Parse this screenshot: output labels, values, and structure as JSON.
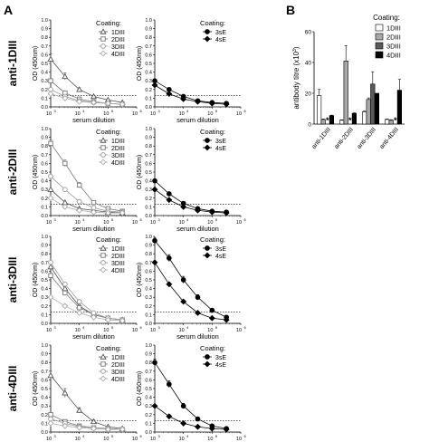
{
  "panels": {
    "a": "A",
    "b": "B"
  },
  "line_charts": {
    "xlabel": "serum dilution",
    "ylabel": "OD (450nm)",
    "ylabel_alt": "OD (450m)",
    "yticks": [
      "0.0",
      "0.1",
      "0.2",
      "0.3",
      "0.4",
      "0.5",
      "0.6",
      "0.7",
      "0.8",
      "0.9",
      "1.0"
    ],
    "xticks": [
      "10",
      "10",
      "10",
      "10"
    ],
    "xtick_exps": [
      "3",
      "4",
      "5",
      "6"
    ],
    "threshold": 0.13,
    "legend_title": "Coating:"
  },
  "chart_data": [
    {
      "type": "line",
      "row": "anti-1DIII",
      "coating": "DIII",
      "xlim_log10": [
        3,
        6
      ],
      "ylim": [
        0,
        1
      ],
      "x": [
        3,
        3.5,
        4,
        4.5,
        5,
        5.5
      ],
      "series": [
        {
          "name": "1DIII",
          "marker": "triangle",
          "values": [
            0.55,
            0.35,
            0.2,
            0.12,
            0.08,
            0.05
          ],
          "err": [
            0.06,
            0.04,
            0.02,
            0.01,
            0.01,
            0.01
          ]
        },
        {
          "name": "2DIII",
          "marker": "square",
          "values": [
            0.3,
            0.16,
            0.09,
            0.06,
            0.04,
            0.03
          ]
        },
        {
          "name": "3DIII",
          "marker": "circle",
          "values": [
            0.2,
            0.12,
            0.07,
            0.05,
            0.04,
            0.03
          ]
        },
        {
          "name": "4DIII",
          "marker": "diamond",
          "values": [
            0.15,
            0.1,
            0.06,
            0.05,
            0.04,
            0.03
          ]
        }
      ]
    },
    {
      "type": "line",
      "row": "anti-1DIII",
      "coating": "E",
      "xlim_log10": [
        3,
        6
      ],
      "ylim": [
        0,
        1
      ],
      "x": [
        3,
        3.5,
        4,
        4.5,
        5,
        5.5
      ],
      "series": [
        {
          "name": "3sE",
          "marker": "filled-circle",
          "values": [
            0.3,
            0.2,
            0.12,
            0.07,
            0.05,
            0.04
          ]
        },
        {
          "name": "4sE",
          "marker": "filled-diamond",
          "values": [
            0.25,
            0.15,
            0.09,
            0.06,
            0.04,
            0.03
          ]
        }
      ]
    },
    {
      "type": "line",
      "row": "anti-2DIII",
      "coating": "DIII",
      "xlim_log10": [
        3,
        6
      ],
      "ylim": [
        0,
        1
      ],
      "x": [
        3,
        3.5,
        4,
        4.5,
        5,
        5.5
      ],
      "series": [
        {
          "name": "1DIII",
          "marker": "triangle",
          "values": [
            0.3,
            0.15,
            0.08,
            0.06,
            0.04,
            0.03
          ]
        },
        {
          "name": "2DIII",
          "marker": "square",
          "values": [
            0.83,
            0.6,
            0.35,
            0.15,
            0.08,
            0.05
          ],
          "err": [
            0.04,
            0.04,
            0.03,
            0.02,
            0.01,
            0.01
          ]
        },
        {
          "name": "3DIII",
          "marker": "circle",
          "values": [
            0.45,
            0.3,
            0.16,
            0.09,
            0.05,
            0.04
          ]
        },
        {
          "name": "4DIII",
          "marker": "diamond",
          "values": [
            0.2,
            0.1,
            0.06,
            0.04,
            0.03,
            0.03
          ]
        }
      ]
    },
    {
      "type": "line",
      "row": "anti-2DIII",
      "coating": "E",
      "xlim_log10": [
        3,
        6
      ],
      "ylim": [
        0,
        1
      ],
      "x": [
        3,
        3.5,
        4,
        4.5,
        5,
        5.5
      ],
      "series": [
        {
          "name": "3sE",
          "marker": "filled-circle",
          "values": [
            0.4,
            0.25,
            0.14,
            0.08,
            0.05,
            0.04
          ]
        },
        {
          "name": "4sE",
          "marker": "filled-diamond",
          "values": [
            0.3,
            0.18,
            0.1,
            0.06,
            0.04,
            0.03
          ]
        }
      ]
    },
    {
      "type": "line",
      "row": "anti-3DIII",
      "coating": "DIII",
      "xlim_log10": [
        3,
        6
      ],
      "ylim": [
        0,
        1
      ],
      "x": [
        3,
        3.5,
        4,
        4.5,
        5,
        5.5
      ],
      "series": [
        {
          "name": "1DIII",
          "marker": "triangle",
          "values": [
            0.65,
            0.4,
            0.2,
            0.1,
            0.06,
            0.04
          ]
        },
        {
          "name": "2DIII",
          "marker": "square",
          "values": [
            0.55,
            0.35,
            0.18,
            0.1,
            0.06,
            0.04
          ]
        },
        {
          "name": "3DIII",
          "marker": "circle",
          "values": [
            0.7,
            0.45,
            0.25,
            0.12,
            0.06,
            0.04
          ]
        },
        {
          "name": "4DIII",
          "marker": "diamond",
          "values": [
            0.3,
            0.2,
            0.12,
            0.07,
            0.04,
            0.03
          ]
        }
      ]
    },
    {
      "type": "line",
      "row": "anti-3DIII",
      "coating": "E",
      "xlim_log10": [
        3,
        6
      ],
      "ylim": [
        0,
        1
      ],
      "x": [
        3,
        3.5,
        4,
        4.5,
        5,
        5.5
      ],
      "series": [
        {
          "name": "3sE",
          "marker": "filled-circle",
          "values": [
            0.95,
            0.75,
            0.5,
            0.3,
            0.15,
            0.07
          ],
          "err": [
            0.03,
            0.04,
            0.04,
            0.03,
            0.02,
            0.01
          ]
        },
        {
          "name": "4sE",
          "marker": "filled-diamond",
          "values": [
            0.7,
            0.45,
            0.25,
            0.12,
            0.06,
            0.04
          ]
        }
      ]
    },
    {
      "type": "line",
      "row": "anti-4DIII",
      "coating": "DIII",
      "xlim_log10": [
        3,
        6
      ],
      "ylim": [
        0,
        1
      ],
      "x": [
        3,
        3.5,
        4,
        4.5,
        5,
        5.5
      ],
      "series": [
        {
          "name": "1DIII",
          "marker": "triangle",
          "values": [
            0.65,
            0.45,
            0.25,
            0.12,
            0.06,
            0.04
          ],
          "err": [
            0.05,
            0.05,
            0.03,
            0.02,
            0.01,
            0.01
          ]
        },
        {
          "name": "2DIII",
          "marker": "square",
          "values": [
            0.2,
            0.12,
            0.07,
            0.05,
            0.04,
            0.03
          ]
        },
        {
          "name": "3DIII",
          "marker": "circle",
          "values": [
            0.15,
            0.1,
            0.06,
            0.05,
            0.04,
            0.03
          ]
        },
        {
          "name": "4DIII",
          "marker": "diamond",
          "values": [
            0.1,
            0.07,
            0.05,
            0.04,
            0.03,
            0.03
          ]
        }
      ]
    },
    {
      "type": "line",
      "row": "anti-4DIII",
      "coating": "E",
      "xlim_log10": [
        3,
        6
      ],
      "ylim": [
        0,
        1
      ],
      "x": [
        3,
        3.5,
        4,
        4.5,
        5,
        5.5
      ],
      "series": [
        {
          "name": "3sE",
          "marker": "filled-circle",
          "values": [
            0.8,
            0.55,
            0.3,
            0.15,
            0.07,
            0.04
          ],
          "err": [
            0.04,
            0.04,
            0.03,
            0.02,
            0.01,
            0.01
          ]
        },
        {
          "name": "4sE",
          "marker": "filled-diamond",
          "values": [
            0.3,
            0.18,
            0.1,
            0.06,
            0.04,
            0.03
          ]
        }
      ]
    },
    {
      "type": "bar",
      "panel": "B",
      "categories": [
        "anti-1DIII",
        "anti-2DIII",
        "anti-3DIII",
        "anti-4DIII"
      ],
      "ylabel": "antibody titre (x10",
      "ylabel_exp": "3",
      "ylabel_end": ")",
      "ylim": [
        0,
        60
      ],
      "yticks": [
        "0",
        "20",
        "40",
        "60"
      ],
      "legend_title": "Coating:",
      "na_marker": "*",
      "series": [
        {
          "name": "1DIII",
          "color": "#ffffff",
          "values": [
            18.5,
            2.5,
            8,
            3
          ],
          "err": [
            4,
            0.3,
            0.5,
            0.3
          ]
        },
        {
          "name": "2DIII",
          "color": "#a8a8a8",
          "values": [
            3,
            41,
            16,
            2.5
          ],
          "err": [
            0.3,
            10,
            1,
            0.3
          ]
        },
        {
          "name": "3DIII",
          "color": "#5a5a5a",
          "values": [
            null,
            null,
            26,
            null
          ],
          "err": [
            null,
            null,
            8,
            null
          ]
        },
        {
          "name": "4DIII",
          "color": "#000000",
          "values": [
            5.5,
            7,
            20,
            22
          ],
          "err": [
            0.3,
            0.3,
            0,
            7
          ]
        }
      ],
      "missing": [
        [
          2,
          0
        ],
        [
          2,
          1
        ],
        [
          2,
          3
        ]
      ]
    }
  ],
  "row_labels": [
    "anti-1DIII",
    "anti-2DIII",
    "anti-3DIII",
    "anti-4DIII"
  ]
}
